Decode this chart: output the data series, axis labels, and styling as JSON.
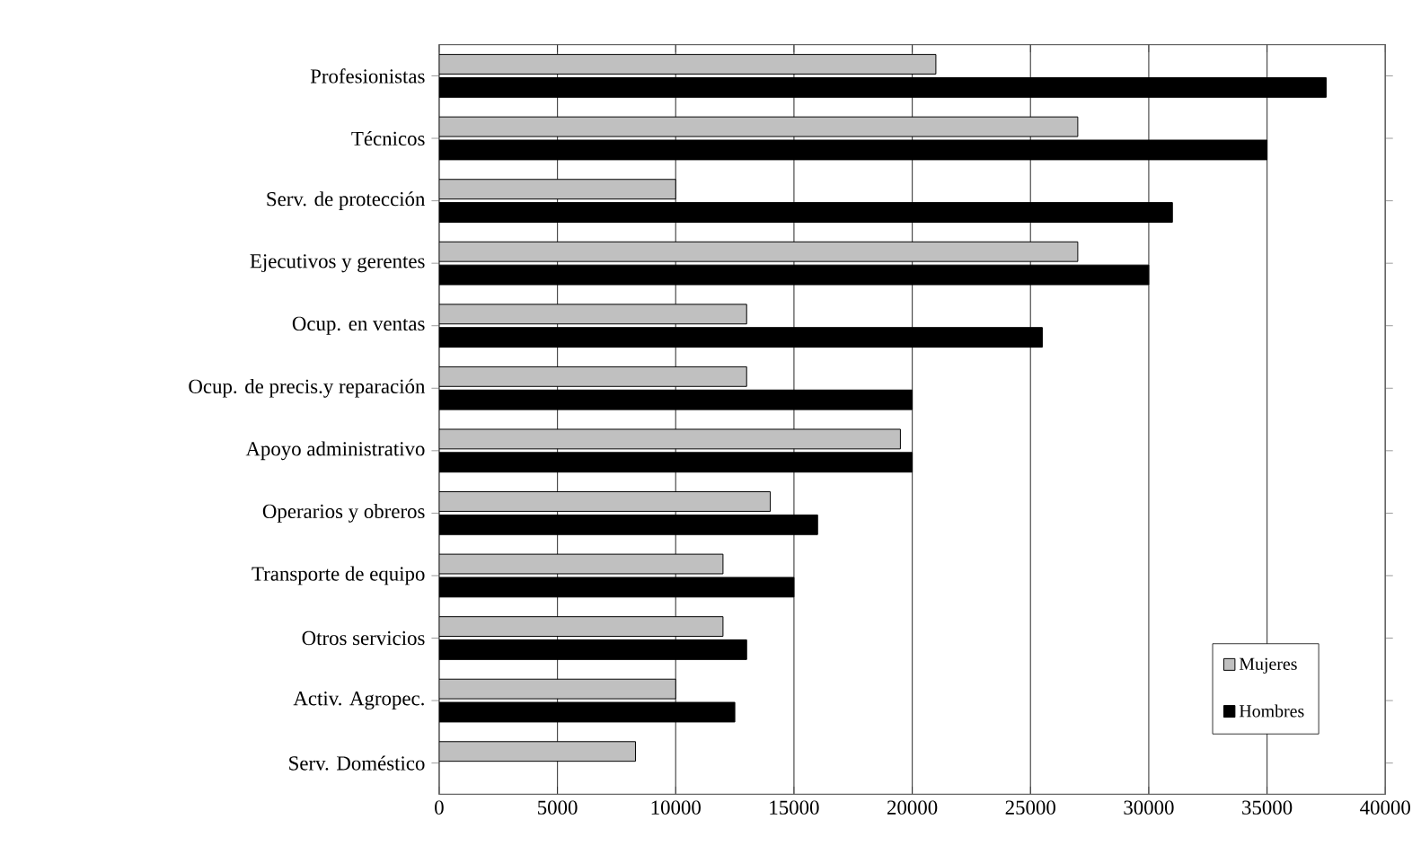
{
  "chart_data": {
    "type": "bar",
    "orientation": "horizontal",
    "categories": [
      "Profesionistas",
      "Técnicos",
      "Serv. de protección",
      "Ejecutivos y gerentes",
      "Ocup. en ventas",
      "Ocup. de precis.y reparación",
      "Apoyo administrativo",
      "Operarios y obreros",
      "Transporte de equipo",
      "Otros servicios",
      "Activ. Agropec.",
      "Serv. Doméstico"
    ],
    "series": [
      {
        "name": "Mujeres",
        "color": "#c0c0c0",
        "values": [
          21000,
          27000,
          10000,
          27000,
          13000,
          13000,
          19500,
          14000,
          12000,
          12000,
          10000,
          8300
        ]
      },
      {
        "name": "Hombres",
        "color": "#000000",
        "values": [
          37500,
          35000,
          31000,
          30000,
          25500,
          20000,
          20000,
          16000,
          15000,
          13000,
          12500,
          null
        ]
      }
    ],
    "xlim": [
      0,
      40000
    ],
    "xticks": [
      0,
      5000,
      10000,
      15000,
      20000,
      25000,
      30000,
      35000,
      40000
    ],
    "grid": "x",
    "legend": "bottom right"
  }
}
